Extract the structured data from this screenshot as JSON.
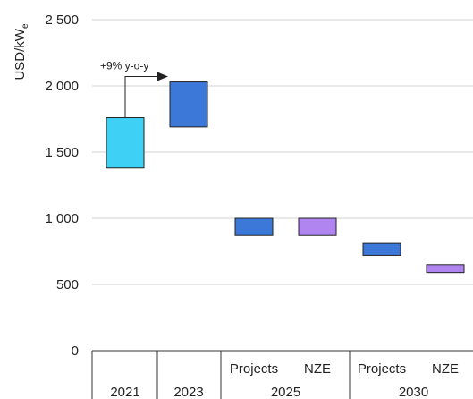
{
  "chart_data": {
    "type": "bar",
    "subtype": "floating-range",
    "ylabel": "USD/kWe",
    "ylabel_main": "USD/kW",
    "ylabel_sub": "e",
    "ylim": [
      0,
      2500
    ],
    "yticks": [
      0,
      500,
      1000,
      1500,
      2000,
      2500
    ],
    "ytick_labels": [
      "0",
      "500",
      "1 000",
      "1 500",
      "2 000",
      "2 500"
    ],
    "grid": true,
    "categories": [
      {
        "label": "2021",
        "group": "2021"
      },
      {
        "label": "2023",
        "group": "2023"
      },
      {
        "label": "Projects",
        "group": "2025"
      },
      {
        "label": "NZE",
        "group": "2025"
      },
      {
        "label": "Projects",
        "group": "2030"
      },
      {
        "label": "NZE",
        "group": "2030"
      }
    ],
    "groups": [
      "2021",
      "2023",
      "2025",
      "2030"
    ],
    "ranges": [
      {
        "low": 1380,
        "high": 1760,
        "color": "#3fd0f5"
      },
      {
        "low": 1690,
        "high": 2030,
        "color": "#3c78d8"
      },
      {
        "low": 870,
        "high": 1000,
        "color": "#3c78d8"
      },
      {
        "low": 870,
        "high": 1000,
        "color": "#b085f0"
      },
      {
        "low": 720,
        "high": 810,
        "color": "#3c78d8"
      },
      {
        "low": 590,
        "high": 650,
        "color": "#b085f0"
      }
    ],
    "annotation": {
      "text": "+9% y-o-y",
      "from": 0,
      "to": 1
    }
  }
}
